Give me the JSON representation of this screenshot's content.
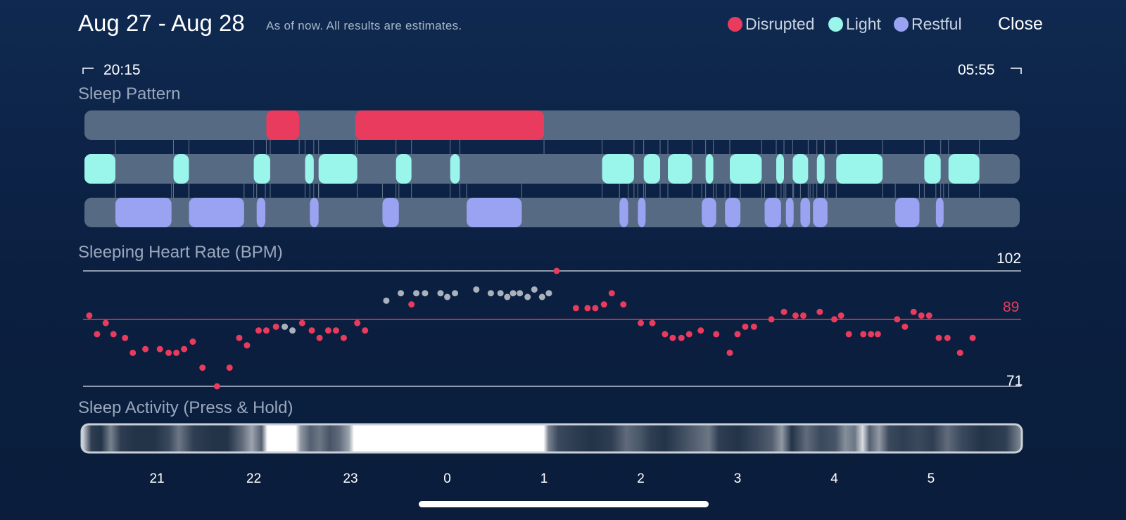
{
  "header": {
    "title": "Aug 27 - Aug 28",
    "subtitle": "As of now. All results are estimates.",
    "close_label": "Close"
  },
  "legend": [
    {
      "label": "Disrupted",
      "color": "#e83b5d"
    },
    {
      "label": "Light",
      "color": "#9af5ea"
    },
    {
      "label": "Restful",
      "color": "#9aa2f2"
    }
  ],
  "time_range": {
    "start": "20:15",
    "end": "05:55"
  },
  "sections": {
    "sleep_pattern": "Sleep Pattern",
    "heart_rate": "Sleeping Heart Rate (BPM)",
    "activity": "Sleep Activity (Press & Hold)"
  },
  "heart_rate": {
    "max": 102,
    "avg": 89,
    "min": 71
  },
  "colors": {
    "disrupted": "#e83b5d",
    "light": "#9af5ea",
    "restful": "#9aa2f2",
    "track": "#566a84",
    "hr_out_of_range": "#a9b1bd"
  },
  "chart_data": [
    {
      "type": "sleep_stages",
      "time_start": 20.25,
      "time_end": 29.9167,
      "x_ticks": [
        "21",
        "22",
        "23",
        "0",
        "1",
        "2",
        "3",
        "4",
        "5"
      ],
      "x_tick_values": [
        21,
        22,
        23,
        24,
        25,
        26,
        27,
        28,
        29
      ],
      "disrupted": [
        [
          22.13,
          22.47
        ],
        [
          23.05,
          25.0
        ]
      ],
      "light": [
        [
          20.25,
          20.57
        ],
        [
          21.17,
          21.33
        ],
        [
          22.0,
          22.17
        ],
        [
          22.53,
          22.62
        ],
        [
          22.67,
          23.07
        ],
        [
          23.47,
          23.63
        ],
        [
          24.03,
          24.13
        ],
        [
          25.6,
          25.93
        ],
        [
          26.03,
          26.2
        ],
        [
          26.28,
          26.53
        ],
        [
          26.67,
          26.75
        ],
        [
          26.92,
          27.25
        ],
        [
          27.4,
          27.48
        ],
        [
          27.57,
          27.73
        ],
        [
          27.82,
          27.9
        ],
        [
          28.02,
          28.5
        ],
        [
          28.93,
          29.1
        ],
        [
          29.18,
          29.5
        ]
      ],
      "restful": [
        [
          20.57,
          21.15
        ],
        [
          21.33,
          21.9
        ],
        [
          22.03,
          22.12
        ],
        [
          22.58,
          22.67
        ],
        [
          23.33,
          23.5
        ],
        [
          24.2,
          24.77
        ],
        [
          25.78,
          25.87
        ],
        [
          25.97,
          26.05
        ],
        [
          26.63,
          26.78
        ],
        [
          26.87,
          27.03
        ],
        [
          27.28,
          27.45
        ],
        [
          27.5,
          27.58
        ],
        [
          27.65,
          27.75
        ],
        [
          27.78,
          27.93
        ],
        [
          28.63,
          28.88
        ],
        [
          29.05,
          29.13
        ]
      ]
    },
    {
      "type": "scatter",
      "ylabel": "Sleeping Heart Rate (BPM)",
      "ylim": [
        71,
        102
      ],
      "reference_lines": [
        102,
        89,
        71
      ],
      "points": [
        [
          20.3,
          90
        ],
        [
          20.38,
          85
        ],
        [
          20.47,
          88
        ],
        [
          20.55,
          85
        ],
        [
          20.67,
          84
        ],
        [
          20.75,
          80
        ],
        [
          20.88,
          81
        ],
        [
          21.03,
          81
        ],
        [
          21.12,
          80
        ],
        [
          21.2,
          80
        ],
        [
          21.28,
          81
        ],
        [
          21.37,
          83
        ],
        [
          21.47,
          76
        ],
        [
          21.62,
          71
        ],
        [
          21.75,
          76
        ],
        [
          21.85,
          84
        ],
        [
          21.93,
          82
        ],
        [
          22.05,
          86
        ],
        [
          22.13,
          86
        ],
        [
          22.23,
          87
        ],
        [
          22.32,
          87
        ],
        [
          22.4,
          86
        ],
        [
          22.5,
          88
        ],
        [
          22.6,
          86
        ],
        [
          22.68,
          84
        ],
        [
          22.77,
          86
        ],
        [
          22.85,
          86
        ],
        [
          22.93,
          84
        ],
        [
          23.07,
          88
        ],
        [
          23.15,
          86
        ],
        [
          23.37,
          94
        ],
        [
          23.52,
          96
        ],
        [
          23.63,
          93
        ],
        [
          23.68,
          96
        ],
        [
          23.77,
          96
        ],
        [
          23.93,
          96
        ],
        [
          24.0,
          95
        ],
        [
          24.08,
          96
        ],
        [
          24.3,
          97
        ],
        [
          24.45,
          96
        ],
        [
          24.55,
          96
        ],
        [
          24.62,
          95
        ],
        [
          24.68,
          96
        ],
        [
          24.75,
          96
        ],
        [
          24.83,
          95
        ],
        [
          24.9,
          97
        ],
        [
          24.98,
          95
        ],
        [
          25.05,
          96
        ],
        [
          25.13,
          102
        ],
        [
          25.33,
          92
        ],
        [
          25.45,
          92
        ],
        [
          25.53,
          92
        ],
        [
          25.62,
          93
        ],
        [
          25.7,
          96
        ],
        [
          25.82,
          93
        ],
        [
          26.0,
          88
        ],
        [
          26.12,
          88
        ],
        [
          26.25,
          85
        ],
        [
          26.33,
          84
        ],
        [
          26.42,
          84
        ],
        [
          26.5,
          85
        ],
        [
          26.62,
          86
        ],
        [
          26.78,
          85
        ],
        [
          26.92,
          80
        ],
        [
          27.0,
          85
        ],
        [
          27.08,
          87
        ],
        [
          27.17,
          87
        ],
        [
          27.35,
          89
        ],
        [
          27.48,
          91
        ],
        [
          27.6,
          90
        ],
        [
          27.68,
          90
        ],
        [
          27.85,
          91
        ],
        [
          28.0,
          89
        ],
        [
          28.07,
          90
        ],
        [
          28.15,
          85
        ],
        [
          28.3,
          85
        ],
        [
          28.38,
          85
        ],
        [
          28.45,
          85
        ],
        [
          28.65,
          89
        ],
        [
          28.73,
          87
        ],
        [
          28.82,
          91
        ],
        [
          28.9,
          90
        ],
        [
          28.98,
          90
        ],
        [
          29.08,
          84
        ],
        [
          29.17,
          84
        ],
        [
          29.3,
          80
        ],
        [
          29.43,
          84
        ]
      ]
    }
  ],
  "activity_intensity": [
    [
      20.25,
      0.9
    ],
    [
      20.35,
      0.15
    ],
    [
      20.45,
      0.1
    ],
    [
      20.55,
      0.45
    ],
    [
      20.65,
      0.15
    ],
    [
      20.8,
      0.1
    ],
    [
      21.0,
      0.1
    ],
    [
      21.15,
      0.2
    ],
    [
      21.25,
      0.4
    ],
    [
      21.4,
      0.15
    ],
    [
      21.6,
      0.1
    ],
    [
      21.75,
      0.1
    ],
    [
      21.9,
      0.35
    ],
    [
      22.0,
      0.6
    ],
    [
      22.1,
      0.3
    ],
    [
      22.16,
      1.0
    ],
    [
      22.45,
      1.0
    ],
    [
      22.5,
      0.55
    ],
    [
      22.6,
      0.3
    ],
    [
      22.7,
      0.4
    ],
    [
      22.8,
      0.25
    ],
    [
      22.9,
      0.35
    ],
    [
      23.0,
      0.6
    ],
    [
      23.05,
      1.0
    ],
    [
      25.0,
      1.0
    ],
    [
      25.05,
      0.45
    ],
    [
      25.15,
      0.2
    ],
    [
      25.3,
      0.15
    ],
    [
      25.5,
      0.1
    ],
    [
      25.7,
      0.15
    ],
    [
      25.85,
      0.35
    ],
    [
      26.0,
      0.25
    ],
    [
      26.1,
      0.15
    ],
    [
      26.25,
      0.1
    ],
    [
      26.4,
      0.2
    ],
    [
      26.55,
      0.3
    ],
    [
      26.7,
      0.4
    ],
    [
      26.8,
      0.15
    ],
    [
      27.0,
      0.1
    ],
    [
      27.2,
      0.2
    ],
    [
      27.35,
      0.3
    ],
    [
      27.45,
      0.55
    ],
    [
      27.55,
      0.1
    ],
    [
      27.7,
      0.35
    ],
    [
      27.85,
      0.2
    ],
    [
      28.0,
      0.25
    ],
    [
      28.1,
      0.5
    ],
    [
      28.2,
      0.4
    ],
    [
      28.28,
      0.85
    ],
    [
      28.35,
      0.3
    ],
    [
      28.45,
      0.55
    ],
    [
      28.55,
      0.2
    ],
    [
      28.7,
      0.15
    ],
    [
      28.85,
      0.2
    ],
    [
      29.0,
      0.15
    ],
    [
      29.15,
      0.35
    ],
    [
      29.3,
      0.2
    ],
    [
      29.5,
      0.1
    ],
    [
      29.75,
      0.15
    ],
    [
      29.92,
      0.5
    ]
  ]
}
